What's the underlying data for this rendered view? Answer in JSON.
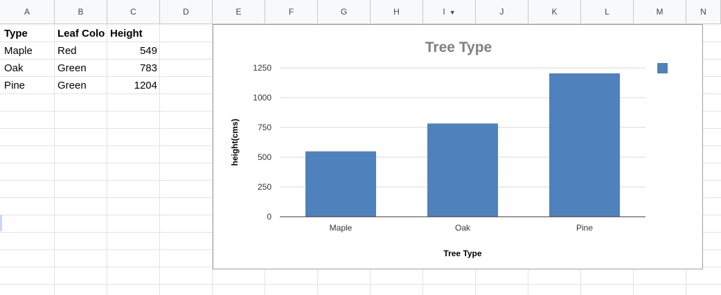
{
  "columns": [
    "A",
    "B",
    "C",
    "D",
    "E",
    "F",
    "G",
    "H",
    "I",
    "J",
    "K",
    "L",
    "M",
    "N"
  ],
  "table": {
    "headers": [
      "Type",
      "Leaf Colo",
      "Height"
    ],
    "rows": [
      {
        "type": "Maple",
        "leaf_color": "Red",
        "height": "549"
      },
      {
        "type": "Oak",
        "leaf_color": "Green",
        "height": "783"
      },
      {
        "type": "Pine",
        "leaf_color": "Green",
        "height": "1204"
      }
    ]
  },
  "chart_data": {
    "type": "bar",
    "title": "Tree Type",
    "xlabel": "Tree Type",
    "ylabel": "height(cms)",
    "categories": [
      "Maple",
      "Oak",
      "Pine"
    ],
    "values": [
      549,
      783,
      1204
    ],
    "ylim": [
      0,
      1250
    ],
    "yticks": [
      0,
      250,
      500,
      750,
      1000,
      1250
    ],
    "grid": true,
    "legend_position": "top-right",
    "colors": {
      "bar": "#4f81bd",
      "grid": "#d9d9d9",
      "title": "#808080"
    }
  }
}
